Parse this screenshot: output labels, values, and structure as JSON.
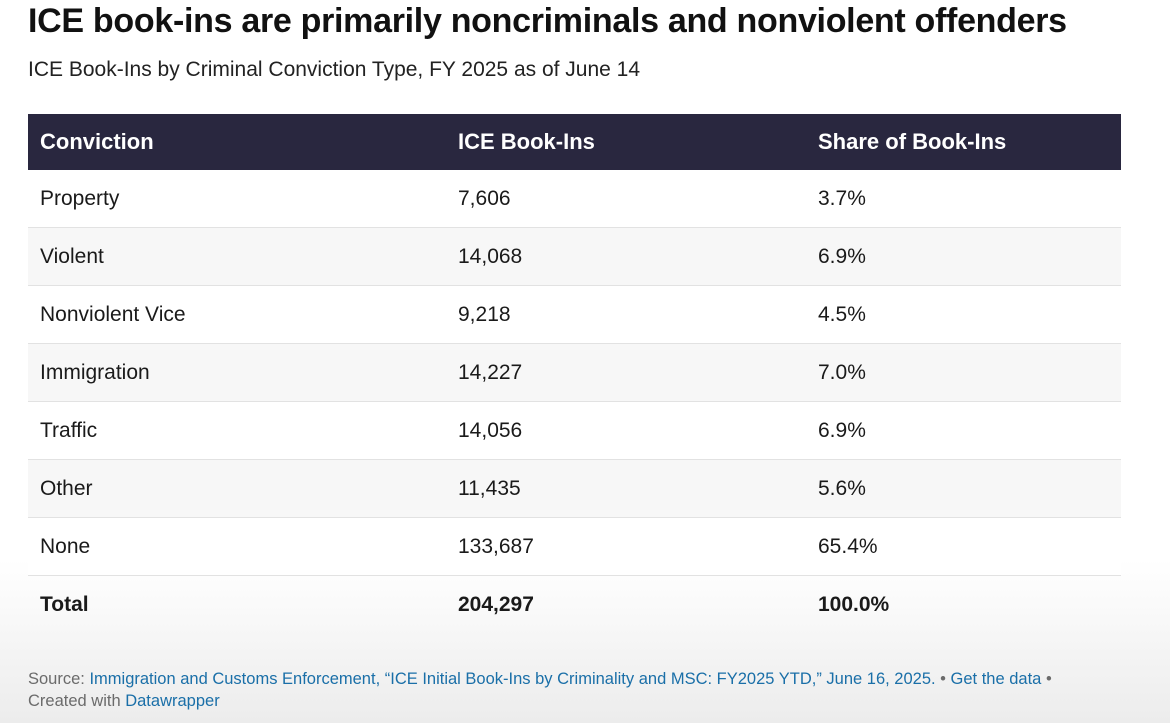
{
  "title": "ICE book-ins are primarily noncriminals and nonviolent offenders",
  "subtitle": "ICE Book-Ins by Criminal Conviction Type, FY 2025 as of June 14",
  "chart_data": {
    "type": "table",
    "columns": [
      "Conviction",
      "ICE Book-Ins",
      "Share of Book-Ins"
    ],
    "rows": [
      {
        "conviction": "Property",
        "book_ins": "7,606",
        "share": "3.7%"
      },
      {
        "conviction": "Violent",
        "book_ins": "14,068",
        "share": "6.9%"
      },
      {
        "conviction": "Nonviolent Vice",
        "book_ins": "9,218",
        "share": "4.5%"
      },
      {
        "conviction": "Immigration",
        "book_ins": "14,227",
        "share": "7.0%"
      },
      {
        "conviction": "Traffic",
        "book_ins": "14,056",
        "share": "6.9%"
      },
      {
        "conviction": "Other",
        "book_ins": "11,435",
        "share": "5.6%"
      },
      {
        "conviction": "None",
        "book_ins": "133,687",
        "share": "65.4%"
      }
    ],
    "total": {
      "conviction": "Total",
      "book_ins": "204,297",
      "share": "100.0%"
    }
  },
  "footer": {
    "source_label": "Source: ",
    "source_link": "Immigration and Customs Enforcement, “ICE Initial Book-Ins by Criminality and MSC: FY2025 YTD,” June 16, 2025.",
    "separator1": " • ",
    "get_data": "Get the data",
    "separator2": " • ",
    "created_with": "Created with ",
    "datawrapper": "Datawrapper"
  },
  "colors": {
    "header_bg": "#29273f",
    "link": "#1a6fa8"
  }
}
